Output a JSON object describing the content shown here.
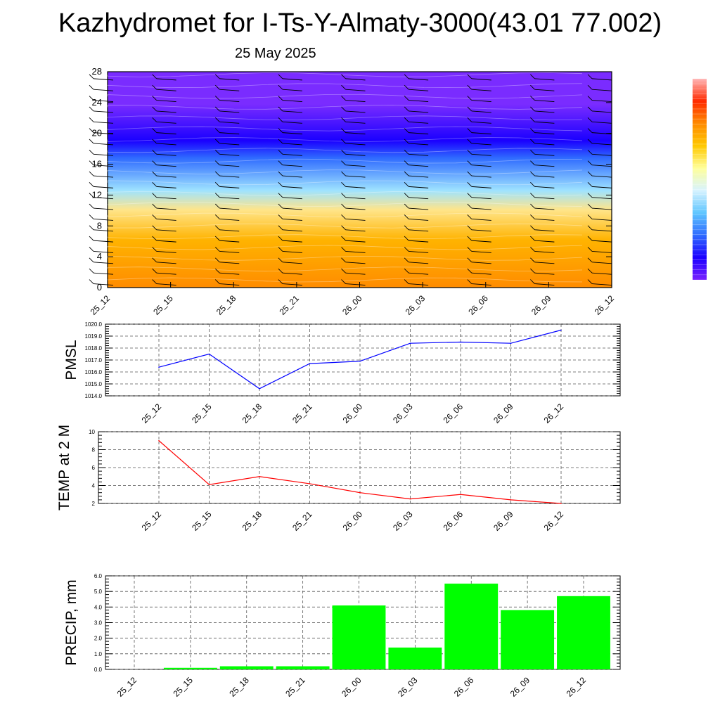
{
  "title": "Kazhydromet for I-Ts-Y-Almaty-3000(43.01 77.002)",
  "subtitle": "25 May 2025",
  "colors": {
    "pmsl_line": "#0000ff",
    "temp_line": "#ff0000",
    "precip_bar": "#00ff00",
    "cross_section_stops": [
      "#ff8c00",
      "#ffb300",
      "#ffe58a",
      "#9fe3ff",
      "#2f6bff",
      "#1a00ff",
      "#7a2cff"
    ],
    "colorbar_stops": [
      "#7a22ff",
      "#1a00ff",
      "#2f6bff",
      "#5fc6ff",
      "#d8f3ff",
      "#ffff9a",
      "#ffc800",
      "#ff8a00",
      "#ff2a00",
      "#ffb6b6"
    ]
  },
  "chart_data": [
    {
      "type": "heatmap",
      "title": "",
      "xlabel": "",
      "ylabel": "",
      "x": [
        "25_12",
        "25_15",
        "25_18",
        "25_21",
        "26_00",
        "26_03",
        "26_06",
        "26_09",
        "26_12"
      ],
      "ylim": [
        0,
        28
      ],
      "yticks": [
        0,
        4,
        8,
        12,
        16,
        20,
        24,
        28
      ],
      "ytick_labels": [
        "0",
        "4",
        "8",
        "12",
        "16",
        "20",
        "24",
        "28"
      ],
      "wind_barbs": true,
      "colorbar": "right"
    },
    {
      "type": "line",
      "title": "",
      "ylabel": "PMSL",
      "categories": [
        "25_12",
        "25_15",
        "25_18",
        "25_21",
        "26_00",
        "26_03",
        "26_06",
        "26_09",
        "26_12"
      ],
      "series": [
        {
          "values": [
            1016.4,
            1017.5,
            1014.6,
            1016.7,
            1016.9,
            1018.4,
            1018.5,
            1018.4,
            1019.5
          ]
        }
      ],
      "ylim": [
        1014.0,
        1020.0
      ],
      "yticks": [
        1014,
        1015,
        1016,
        1017,
        1018,
        1019,
        1020
      ],
      "ytick_labels": [
        "1014.0",
        "1015.0",
        "1016.0",
        "1017.0",
        "1018.0",
        "1019.0",
        "1020.0"
      ],
      "grid": true
    },
    {
      "type": "line",
      "title": "",
      "ylabel": "TEMP at 2 M",
      "categories": [
        "25_12",
        "25_15",
        "25_18",
        "25_21",
        "26_00",
        "26_03",
        "26_06",
        "26_09",
        "26_12"
      ],
      "series": [
        {
          "values": [
            9.0,
            4.1,
            5.0,
            4.2,
            3.2,
            2.5,
            3.0,
            2.4,
            2.0
          ]
        }
      ],
      "ylim": [
        2,
        10
      ],
      "yticks": [
        2,
        4,
        6,
        8,
        10
      ],
      "ytick_labels": [
        "2",
        "4",
        "6",
        "8",
        "10"
      ],
      "grid": true
    },
    {
      "type": "bar",
      "title": "",
      "ylabel": "PRECIP, mm",
      "categories": [
        "25_12",
        "25_15",
        "25_18",
        "25_21",
        "26_00",
        "26_03",
        "26_06",
        "26_09",
        "26_12"
      ],
      "values": [
        0.0,
        0.1,
        0.2,
        0.2,
        4.1,
        1.4,
        5.5,
        3.8,
        4.7
      ],
      "ylim": [
        0.0,
        6.0
      ],
      "yticks": [
        0,
        1,
        2,
        3,
        4,
        5,
        6
      ],
      "ytick_labels": [
        "0.0",
        "1.0",
        "2.0",
        "3.0",
        "4.0",
        "5.0",
        "6.0"
      ],
      "grid": true
    }
  ]
}
